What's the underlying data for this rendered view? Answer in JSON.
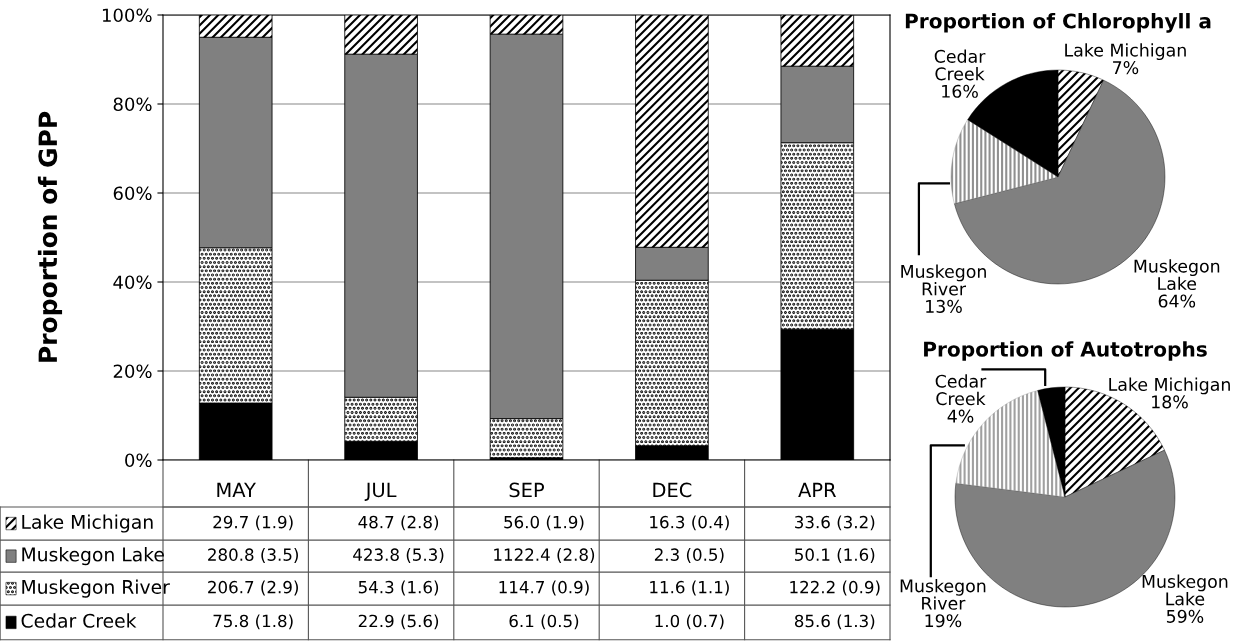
{
  "chart_data": [
    {
      "type": "bar",
      "stacked": true,
      "ylabel": "Proportion of GPP",
      "categories": [
        "MAY",
        "JUL",
        "SEP",
        "DEC",
        "APR"
      ],
      "ylim": [
        0,
        100
      ],
      "yticks": [
        {
          "value": 0,
          "label": "0%"
        },
        {
          "value": 20,
          "label": "20%"
        },
        {
          "value": 40,
          "label": "40%"
        },
        {
          "value": 60,
          "label": "60%"
        },
        {
          "value": 80,
          "label": "80%"
        },
        {
          "value": 100,
          "label": "100%"
        }
      ],
      "grid": "y",
      "legend": "bottom left",
      "series": [
        {
          "name": "Cedar Creek",
          "color": "#000000",
          "values": [
            12.8,
            4.2,
            0.5,
            3.2,
            29.4
          ]
        },
        {
          "name": "Muskegon River",
          "color": "#000000",
          "values": [
            34.9,
            9.9,
            8.8,
            37.2,
            41.9
          ]
        },
        {
          "name": "Muskegon Lake",
          "color": "#808080",
          "values": [
            47.3,
            77.1,
            86.4,
            7.4,
            17.2
          ]
        },
        {
          "name": "Lake Michigan",
          "color": "#000000",
          "values": [
            5.0,
            8.8,
            4.3,
            52.2,
            11.5
          ]
        }
      ],
      "annotations": [
        "29.7 (1.9)",
        "48.7 (2.8)",
        "56.0 (1.9)",
        "16.3 (0.4)",
        "33.6 (3.2)",
        "280.8 (3.5)",
        "423.8 (5.3)",
        "1122.4 (2.8)",
        "2.3 (0.5)",
        "50.1 (1.6)",
        "206.7 (2.9)",
        "54.3 (1.6)",
        "114.7 (0.9)",
        "11.6 (1.1)",
        "122.2 (0.9)",
        "75.8 (1.8)",
        "22.9 (5.6)",
        "6.1 (0.5)",
        "1.0 (0.7)",
        "85.6 (1.3)"
      ]
    },
    {
      "type": "pie",
      "title": "Proportion of Chlorophyll a",
      "categories": [
        "Lake Michigan",
        "Muskegon Lake",
        "Muskegon River",
        "Cedar Creek"
      ],
      "values": [
        7,
        64,
        13,
        16
      ],
      "value_labels": [
        "7%",
        "64%",
        "13%",
        "16%"
      ],
      "colors": [
        "#000000",
        "#808080",
        "#909090",
        "#000000"
      ]
    },
    {
      "type": "pie",
      "title": "Proportion of Autotrophs",
      "categories": [
        "Lake Michigan",
        "Muskegon Lake",
        "Muskegon River",
        "Cedar Creek"
      ],
      "values": [
        18,
        59,
        19,
        4
      ],
      "value_labels": [
        "18%",
        "59%",
        "19%",
        "4%"
      ],
      "colors": [
        "#000000",
        "#808080",
        "#a0a0a0",
        "#000000"
      ]
    }
  ]
}
